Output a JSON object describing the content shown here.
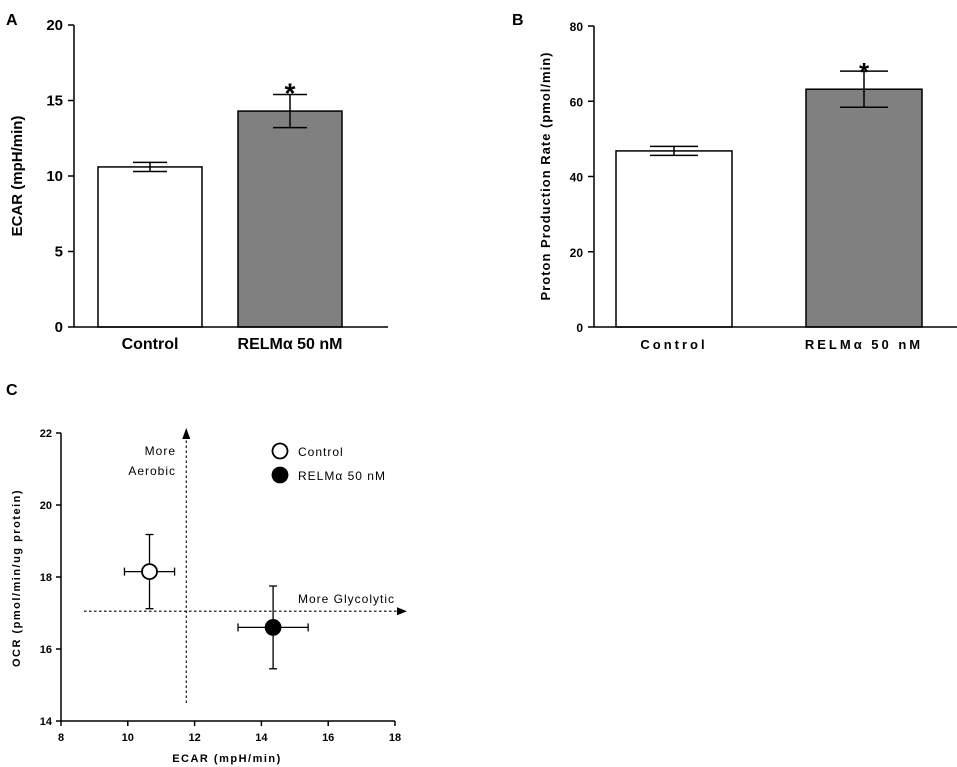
{
  "chart_data": [
    {
      "panel": "A",
      "type": "bar",
      "title": "",
      "xlabel": "",
      "ylabel": "ECAR (mpH/min)",
      "ylim": [
        0,
        20
      ],
      "yticks": [
        0,
        5,
        10,
        15,
        20
      ],
      "categories": [
        "Control",
        "RELMα 50 nM"
      ],
      "values": [
        10.6,
        14.3
      ],
      "errors": [
        0.3,
        1.1
      ],
      "fill_colors": [
        "#ffffff",
        "#808080"
      ],
      "significance": [
        "",
        "*"
      ],
      "grid": false
    },
    {
      "panel": "B",
      "type": "bar",
      "title": "",
      "xlabel": "",
      "ylabel": "Proton Production Rate (pmol/min)",
      "ylim": [
        0,
        80
      ],
      "yticks": [
        0,
        20,
        40,
        60,
        80
      ],
      "categories": [
        "Control",
        "RELMα 50 nM"
      ],
      "values": [
        46.8,
        63.2
      ],
      "errors": [
        1.2,
        4.8
      ],
      "fill_colors": [
        "#ffffff",
        "#808080"
      ],
      "significance": [
        "",
        "*"
      ],
      "grid": false
    },
    {
      "panel": "C",
      "type": "scatter",
      "title": "",
      "xlabel": "ECAR (mpH/min)",
      "ylabel": "OCR (pmol/min/ug protein)",
      "xlim": [
        8,
        18
      ],
      "ylim": [
        14,
        22
      ],
      "xticks": [
        8,
        10,
        12,
        14,
        16,
        18
      ],
      "yticks": [
        14,
        16,
        18,
        20,
        22
      ],
      "series": [
        {
          "name": "Control",
          "x": 10.65,
          "y": 18.15,
          "xerr": 0.75,
          "yerr": 1.03,
          "marker": "open-circle"
        },
        {
          "name": "RELMα 50 nM",
          "x": 14.35,
          "y": 16.6,
          "xerr": 1.05,
          "yerr": 1.15,
          "marker": "filled-circle"
        }
      ],
      "reference_lines": {
        "vertical_x": 11.75,
        "horizontal_y": 17.05
      },
      "annotations": [
        "More",
        "Aerobic",
        "More Glycolytic"
      ],
      "legend_position": "top-right",
      "grid": false
    }
  ]
}
